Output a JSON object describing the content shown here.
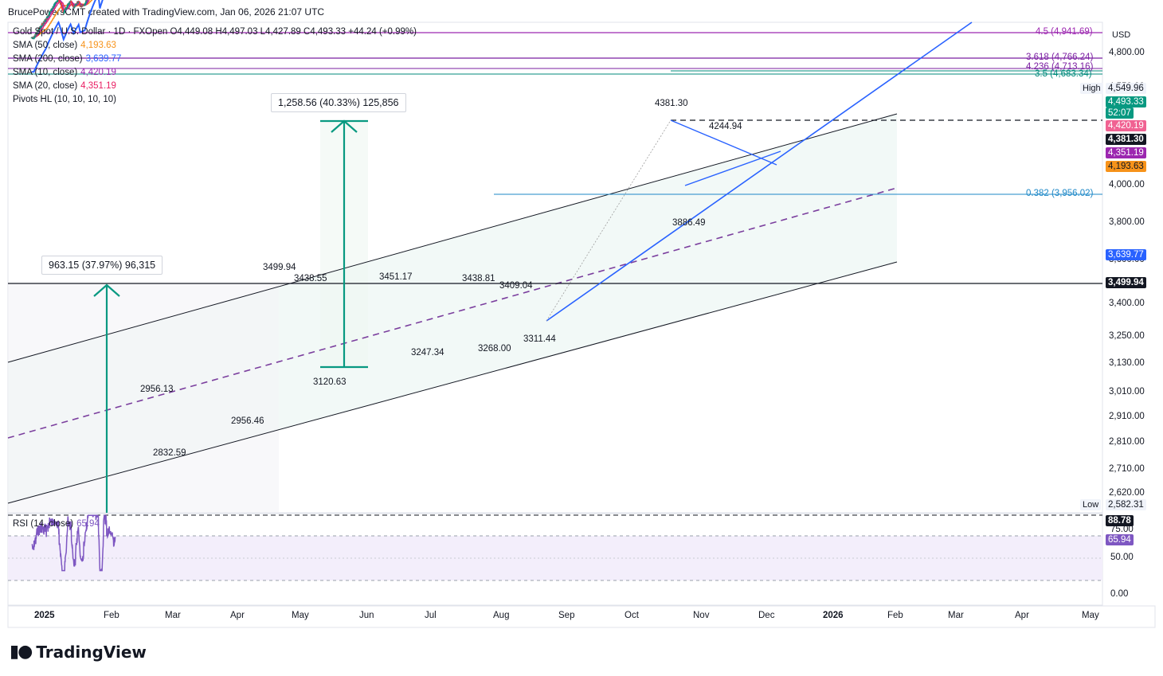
{
  "header": {
    "attribution": "BrucePowersCMT created with TradingView.com, Jan 06, 2026 21:07 UTC"
  },
  "legend": {
    "symbol": "Gold Spot / U.S. Dollar · 1D · FXOpen  O4,449.08  H4,497.03  L4,427.89  C4,493.33  +44.24 (+0.99%)",
    "sma50": {
      "label": "SMA (50, close)",
      "value": "4,193.63",
      "color": "#f7931a"
    },
    "sma200": {
      "label": "SMA (200, close)",
      "value": "3,639.77",
      "color": "#2962ff"
    },
    "sma10": {
      "label": "SMA (10, close)",
      "value": "4,420.19",
      "color": "#9c27b0"
    },
    "sma20": {
      "label": "SMA (20, close)",
      "value": "4,351.19",
      "color": "#e91e63"
    },
    "pivots": "Pivots HL (10, 10, 10, 10)"
  },
  "rsi_legend": {
    "label": "RSI (14, close)",
    "value": "65.94"
  },
  "price_axis": {
    "currency": "USD",
    "ticks": [
      "4,800.00",
      "4,550.00",
      "4,000.00",
      "3,800.00",
      "3,600.00",
      "3,400.00",
      "3,250.00",
      "3,130.00",
      "3,010.00",
      "2,910.00",
      "2,810.00",
      "2,710.00",
      "2,620.00"
    ],
    "badges": {
      "high_label": "High",
      "high_value": "4,549.96",
      "close": "4,493.33",
      "countdown": "52:07",
      "sma10": "4,420.19",
      "pivot": "4,381.30",
      "sma20": "4,351.19",
      "sma50": "4,193.63",
      "sma200": "3,639.77",
      "level": "3,499.94",
      "low_label": "Low",
      "low_value": "2,582.31"
    }
  },
  "rsi_axis": {
    "ticks": [
      "75.00",
      "50.00",
      "0.00"
    ],
    "badge_max": "88.78",
    "badge_val": "65.94"
  },
  "time_axis": [
    "2025",
    "Feb",
    "Mar",
    "Apr",
    "May",
    "Jun",
    "Jul",
    "Aug",
    "Sep",
    "Oct",
    "Nov",
    "Dec",
    "2026",
    "Feb",
    "Mar",
    "Apr",
    "May"
  ],
  "fib_labels": {
    "f45": "4.5 (4,941.69)",
    "f3618": "3.618 (4,766.24)",
    "f4236": "4.236 (4,713.16)",
    "f35": "3.5 (4,683.34)",
    "f0382": "0.382 (3,956.02)"
  },
  "annotations": {
    "measure1": "963.15 (37.97%) 96,315",
    "measure2": "1,258.56 (40.33%) 125,856",
    "pivots": [
      "3499.94",
      "3438.55",
      "3451.17",
      "3438.81",
      "3409.04",
      "2956.13",
      "2956.46",
      "2832.59",
      "3120.63",
      "3247.34",
      "3268.00",
      "3311.44",
      "4381.30",
      "4244.94",
      "3886.49"
    ]
  },
  "chart_data": {
    "type": "candlestick",
    "instrument": "Gold Spot / U.S. Dollar",
    "timeframe": "1D",
    "last": {
      "open": 4449.08,
      "high": 4497.03,
      "low": 4427.89,
      "close": 4493.33,
      "change": 44.24,
      "change_pct": 0.99
    },
    "x_range": [
      "2024-12-20",
      "2026-05-15"
    ],
    "y_range": [
      2560,
      5000
    ],
    "key_points": [
      {
        "date": "2024-12-30",
        "price": 2596
      },
      {
        "date": "2025-02-24",
        "price": 2956
      },
      {
        "date": "2025-04-22",
        "price": 3500
      },
      {
        "date": "2025-05-15",
        "price": 3121
      },
      {
        "date": "2025-06-16",
        "price": 3451
      },
      {
        "date": "2025-06-30",
        "price": 3247
      },
      {
        "date": "2025-07-23",
        "price": 3439
      },
      {
        "date": "2025-07-30",
        "price": 3268
      },
      {
        "date": "2025-08-20",
        "price": 3311
      },
      {
        "date": "2025-10-20",
        "price": 4381
      },
      {
        "date": "2025-10-28",
        "price": 3886
      },
      {
        "date": "2025-11-13",
        "price": 4245
      },
      {
        "date": "2025-12-26",
        "price": 4550
      },
      {
        "date": "2026-01-06",
        "price": 4493
      }
    ],
    "rsi": {
      "range": [
        0,
        100
      ],
      "last": 65.94,
      "max": 88.78
    }
  }
}
